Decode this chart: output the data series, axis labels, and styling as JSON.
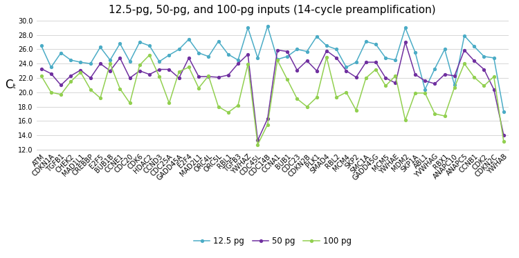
{
  "title": "12.5-pg, 50-pg, and 100-pg inputs (14-cycle preamplification)",
  "ylabel": "Cₜ",
  "ylim": [
    12.0,
    30.0
  ],
  "yticks": [
    12.0,
    14.0,
    16.0,
    18.0,
    20.0,
    22.0,
    24.0,
    26.0,
    28.0,
    30.0
  ],
  "categories": [
    "ATM",
    "CDKN1A",
    "TGFB1",
    "CHEK2",
    "MAD1L1",
    "CREBBP",
    "E2F5",
    "BUB1B",
    "CCNE1",
    "CDC20",
    "CDK6",
    "HDAC2",
    "CCND3",
    "CDC25A",
    "GADD45A",
    "E2F4",
    "MAD2L1",
    "ORC4L",
    "ORC5L",
    "RBL1",
    "TGFB3",
    "YWHAZ",
    "CDC45L",
    "CDC14B",
    "CCNA1",
    "BUB1",
    "CDC23",
    "CDKN2B",
    "PLK1",
    "SMAD4",
    "RBL2",
    "MCM4",
    "SKP2",
    "SMC1A",
    "GADD45G",
    "MCM5",
    "YWHAE",
    "MDM2",
    "SKP1A",
    "ABL1",
    "YVWHAG",
    "RBX1",
    "ANAPC10",
    "ANAPC5",
    "CCNB1",
    "CDK2",
    "CDKN2C",
    "YWHAB"
  ],
  "series_12_5": [
    26.5,
    23.5,
    25.5,
    24.5,
    24.2,
    24.0,
    26.3,
    24.5,
    26.8,
    24.3,
    27.0,
    26.5,
    24.3,
    25.2,
    26.0,
    27.4,
    25.5,
    25.0,
    27.1,
    25.3,
    24.5,
    29.0,
    24.8,
    29.2,
    24.6,
    25.0,
    26.0,
    25.7,
    27.8,
    26.5,
    26.0,
    23.5,
    24.2,
    27.1,
    26.7,
    24.8,
    24.5,
    29.0,
    25.6,
    20.4,
    23.3,
    26.0,
    21.0,
    27.9,
    26.4,
    25.0,
    24.8,
    17.3
  ],
  "series_50": [
    23.3,
    22.6,
    21.0,
    22.3,
    23.1,
    22.0,
    24.0,
    23.0,
    24.8,
    22.0,
    23.0,
    22.5,
    23.2,
    23.2,
    22.0,
    24.8,
    22.2,
    22.2,
    22.1,
    22.4,
    24.0,
    25.3,
    13.3,
    16.3,
    25.9,
    25.7,
    23.1,
    24.4,
    23.0,
    25.8,
    24.8,
    23.0,
    22.1,
    24.2,
    24.2,
    22.0,
    21.3,
    27.0,
    22.5,
    21.6,
    21.2,
    22.5,
    22.3,
    25.9,
    24.4,
    23.2,
    20.4,
    14.0
  ],
  "series_100": [
    22.3,
    20.0,
    19.7,
    21.5,
    22.8,
    20.4,
    19.2,
    24.0,
    20.5,
    18.5,
    23.8,
    25.2,
    22.2,
    18.5,
    22.9,
    23.5,
    20.6,
    22.3,
    18.0,
    17.2,
    18.2,
    23.9,
    12.7,
    15.5,
    24.5,
    21.8,
    19.1,
    18.0,
    19.3,
    24.9,
    19.3,
    20.0,
    17.5,
    22.0,
    23.2,
    20.9,
    22.3,
    16.1,
    19.9,
    19.9,
    17.0,
    16.7,
    20.7,
    24.0,
    22.1,
    20.9,
    22.2,
    13.1
  ],
  "color_12_5": "#4BACC6",
  "color_50": "#7030A0",
  "color_100": "#92D050",
  "legend_labels": [
    "12.5 pg",
    "50 pg",
    "100 pg"
  ],
  "title_fontsize": 11,
  "ylabel_fontsize": 12,
  "tick_fontsize": 7.0,
  "label_rotation": 45
}
